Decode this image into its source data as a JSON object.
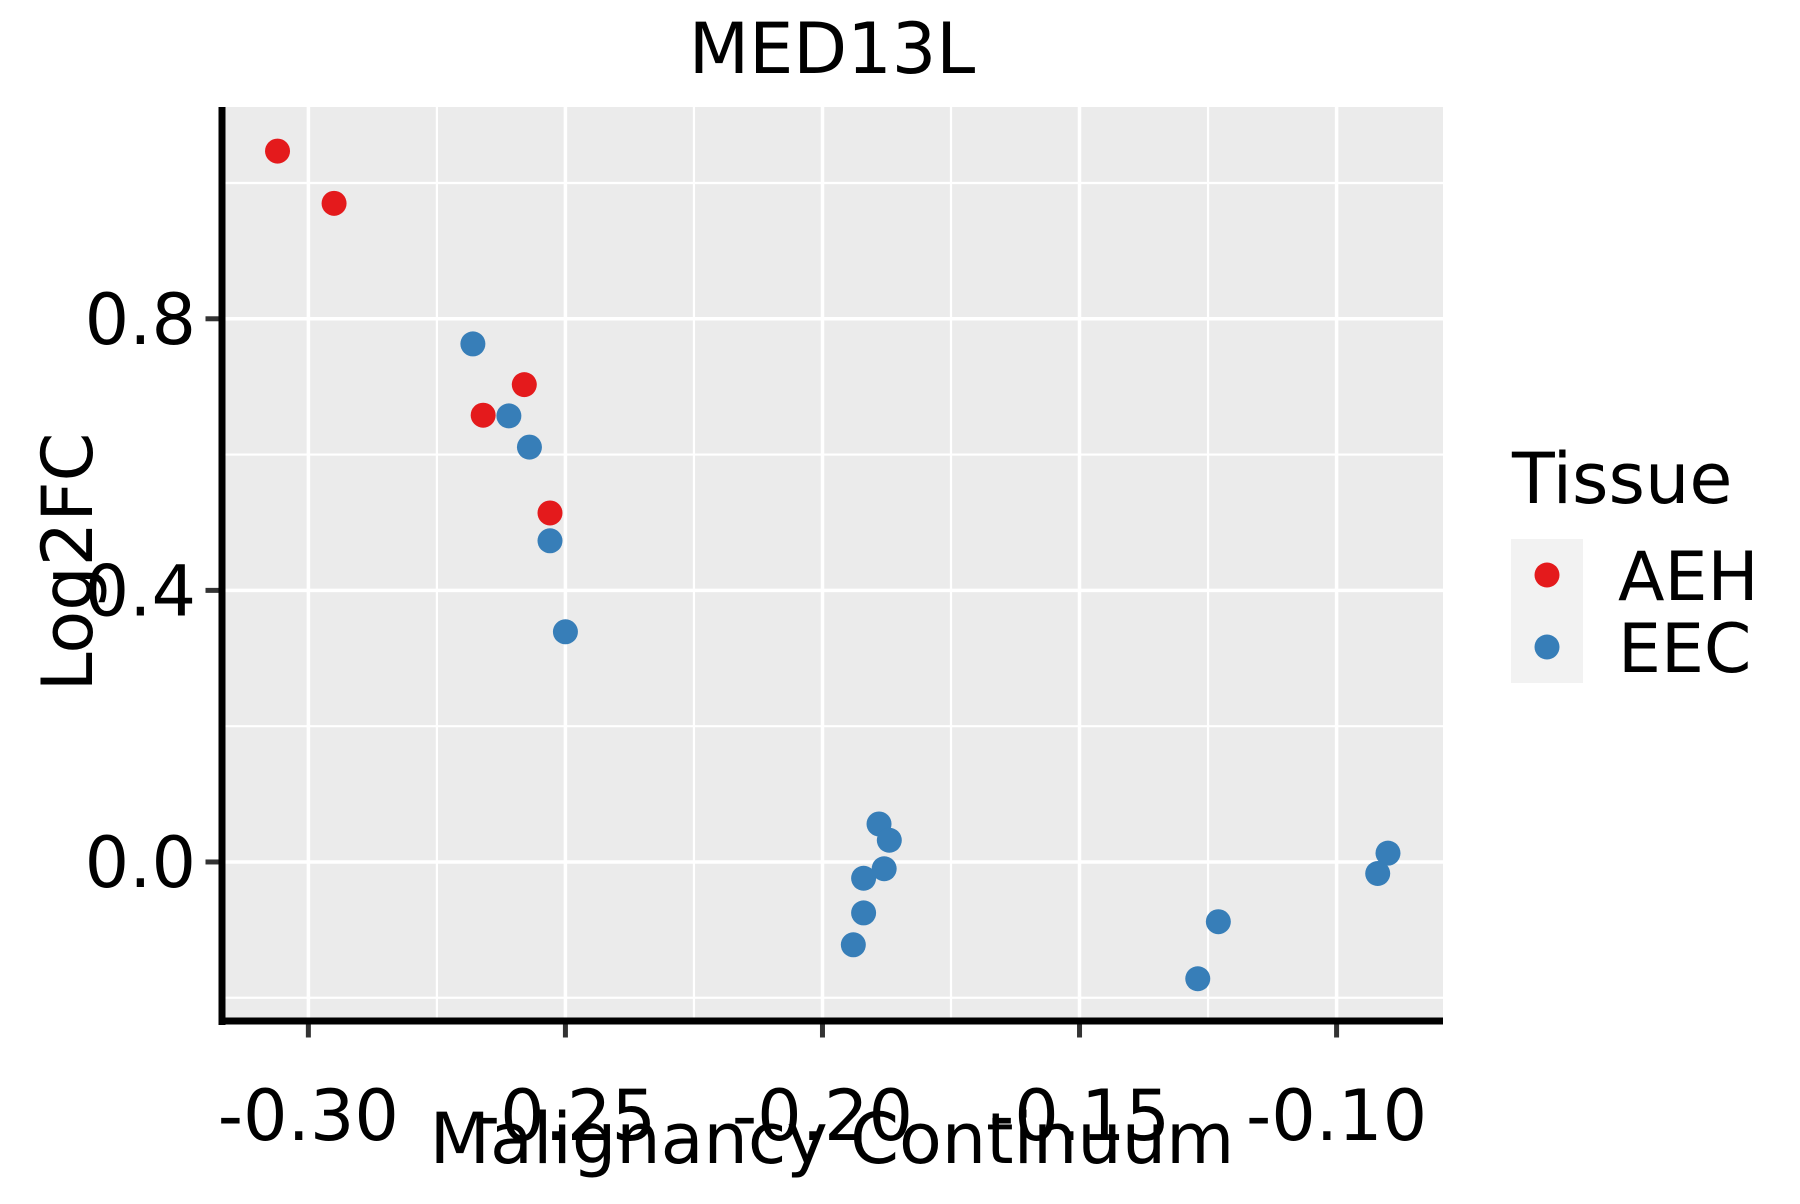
{
  "chart_data": {
    "type": "scatter",
    "title": "MED13L",
    "xlabel": "Malignancy Continuum",
    "ylabel": "Log2FC",
    "xlim": [
      -0.3168,
      -0.0793
    ],
    "ylim": [
      -0.2298,
      1.1119
    ],
    "grid": "major-and-minor",
    "x_ticks": {
      "values": [
        -0.3,
        -0.25,
        -0.2,
        -0.15,
        -0.1
      ],
      "labels": [
        "-0.30",
        "-0.25",
        "-0.20",
        "-0.15",
        "-0.10"
      ]
    },
    "y_ticks": {
      "values": [
        0.0,
        0.4,
        0.8
      ],
      "labels": [
        "0.0",
        "0.4",
        "0.8"
      ]
    },
    "x_minor_ticks": [
      -0.275,
      -0.225,
      -0.175,
      -0.125
    ],
    "y_minor_ticks": [
      1.0,
      0.6,
      0.2,
      -0.2
    ],
    "legend": {
      "title": "Tissue",
      "position": "right"
    },
    "series": [
      {
        "name": "AEH",
        "color": "#e41a1c",
        "points": [
          [
            -0.306,
            1.047
          ],
          [
            -0.295,
            0.97
          ],
          [
            -0.258,
            0.703
          ],
          [
            -0.266,
            0.658
          ],
          [
            -0.253,
            0.514
          ]
        ]
      },
      {
        "name": "EEC",
        "color": "#377eb8",
        "points": [
          [
            -0.268,
            0.763
          ],
          [
            -0.261,
            0.657
          ],
          [
            -0.257,
            0.611
          ],
          [
            -0.253,
            0.473
          ],
          [
            -0.25,
            0.339
          ],
          [
            -0.189,
            0.056
          ],
          [
            -0.187,
            0.032
          ],
          [
            -0.188,
            -0.01
          ],
          [
            -0.192,
            -0.024
          ],
          [
            -0.192,
            -0.075
          ],
          [
            -0.194,
            -0.122
          ],
          [
            -0.123,
            -0.088
          ],
          [
            -0.127,
            -0.172
          ],
          [
            -0.09,
            0.013
          ],
          [
            -0.092,
            -0.017
          ]
        ]
      }
    ],
    "style": {
      "panel_bg": "#ebebeb",
      "grid_color": "#ffffff",
      "legend_key_bg": "#f2f2f2",
      "spine_color": "#000000",
      "tick_color": "#333333",
      "point_radius": 12.5
    }
  }
}
